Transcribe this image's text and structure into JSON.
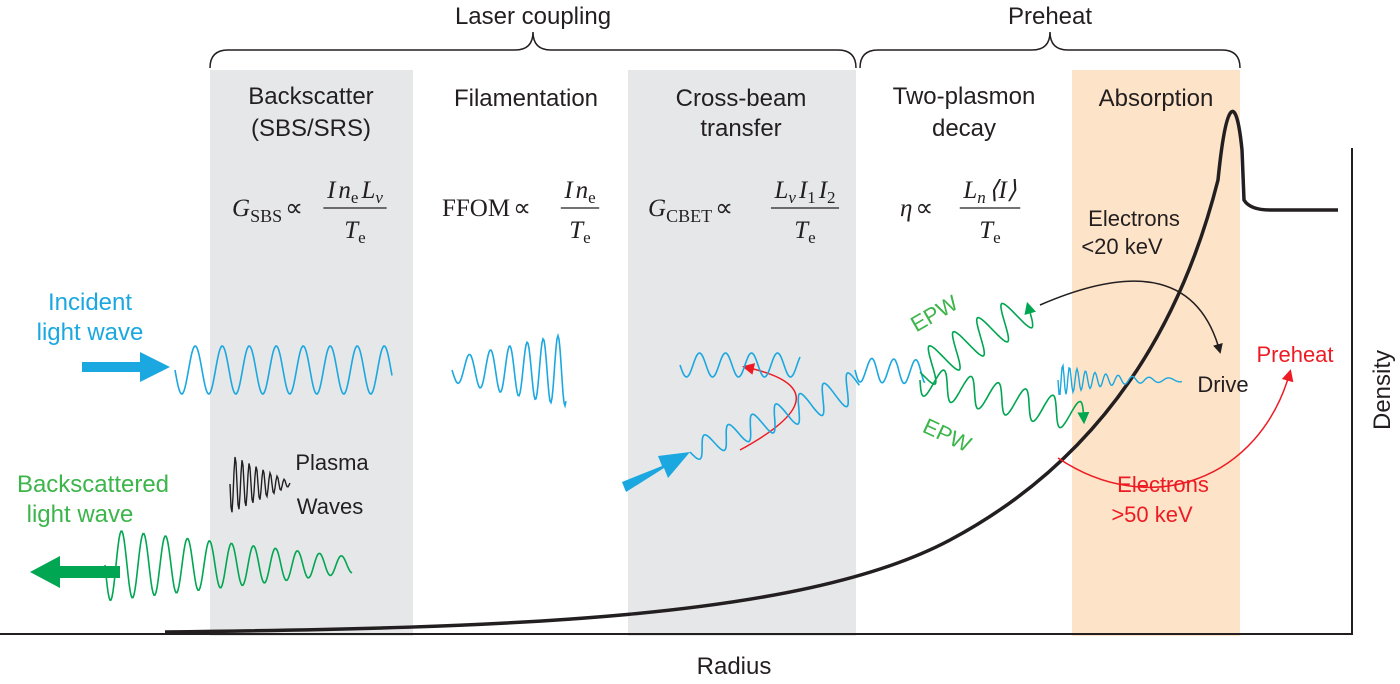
{
  "groups": [
    {
      "label": "Laser coupling"
    },
    {
      "label": "Preheat"
    }
  ],
  "regions": [
    {
      "label": [
        "Backscatter",
        "(SBS/SRS)"
      ],
      "formula": {
        "lhs": "G",
        "lhs_sub": "SBS",
        "relation": "∝",
        "numerator": [
          {
            "base": "I"
          },
          {
            "base": "n",
            "sub": "e"
          },
          {
            "base": "L",
            "sub": "v"
          }
        ],
        "denominator": [
          {
            "base": "T",
            "sub": "e"
          }
        ]
      }
    },
    {
      "label": [
        "Filamentation"
      ],
      "formula": {
        "lhs": "FFOM",
        "relation": "∝",
        "numerator": [
          {
            "base": "I"
          },
          {
            "base": "n",
            "sub": "e"
          }
        ],
        "denominator": [
          {
            "base": "T",
            "sub": "e"
          }
        ]
      }
    },
    {
      "label": [
        "Cross-beam",
        "transfer"
      ],
      "formula": {
        "lhs": "G",
        "lhs_sub": "CBET",
        "relation": "∝",
        "numerator": [
          {
            "base": "L",
            "sub": "v"
          },
          {
            "base": "I",
            "sub": "1"
          },
          {
            "base": "I",
            "sub": "2"
          }
        ],
        "denominator": [
          {
            "base": "T",
            "sub": "e"
          }
        ]
      }
    },
    {
      "label": [
        "Two-plasmon",
        "decay"
      ],
      "formula": {
        "lhs": "η",
        "relation": "∝",
        "numerator": [
          {
            "base": "L",
            "sub": "n"
          },
          {
            "base": "⟨I⟩"
          }
        ],
        "denominator": [
          {
            "base": "T",
            "sub": "e"
          }
        ]
      }
    },
    {
      "label": [
        "Absorption"
      ]
    }
  ],
  "annotations": {
    "incident": [
      "Incident",
      "light wave"
    ],
    "backscattered": [
      "Backscattered",
      "light wave"
    ],
    "plasma_waves": [
      "Plasma",
      "Waves"
    ],
    "epw_upper": "EPW",
    "epw_lower": "EPW",
    "electrons_low": [
      "Electrons",
      "<20 keV"
    ],
    "drive": "Drive",
    "preheat": "Preheat",
    "electrons_high": [
      "Electrons",
      ">50 keV"
    ]
  },
  "axes": {
    "x_label": "Radius",
    "y_label": "Density"
  }
}
